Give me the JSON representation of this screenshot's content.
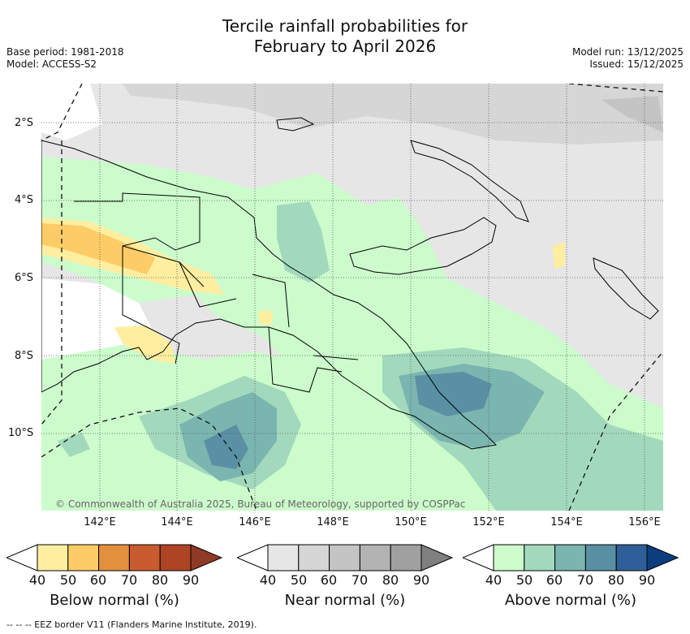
{
  "title_line1": "Tercile rainfall probabilities for",
  "title_line2": "February to April 2026",
  "base_period": "Base period: 1981-2018",
  "model": "Model: ACCESS-S2",
  "model_run": "Model run: 13/12/2025",
  "issued": "Issued: 15/12/2025",
  "lat_labels": [
    "2°S",
    "4°S",
    "6°S",
    "8°S",
    "10°S"
  ],
  "lon_labels": [
    "142°E",
    "144°E",
    "146°E",
    "148°E",
    "150°E",
    "152°E",
    "154°E",
    "156°E"
  ],
  "copyright": "© Commonwealth of Australia 2025, Bureau of Meteorology, supported by COSPPac",
  "footnote": "-- -- -- EEZ border V11 (Flanders Marine Institute, 2019).",
  "colorbars": {
    "below": {
      "label": "Below normal (%)",
      "ticks": [
        "40",
        "50",
        "60",
        "70",
        "80",
        "90"
      ],
      "colors": [
        "#ffeea0",
        "#fdcc66",
        "#e3903e",
        "#c95c2f",
        "#ad4424",
        "#8e3a26"
      ]
    },
    "near": {
      "label": "Near normal (%)",
      "ticks": [
        "40",
        "50",
        "60",
        "70",
        "80",
        "90"
      ],
      "colors": [
        "#e6e6e6",
        "#d6d6d6",
        "#c4c4c4",
        "#b3b3b3",
        "#a0a0a0",
        "#808080"
      ]
    },
    "above": {
      "label": "Above normal (%)",
      "ticks": [
        "40",
        "50",
        "60",
        "70",
        "80",
        "90"
      ],
      "colors": [
        "#ccfccc",
        "#a2d9bd",
        "#7ab5b0",
        "#5a90a4",
        "#2f5f98",
        "#0c3e7e"
      ]
    }
  }
}
